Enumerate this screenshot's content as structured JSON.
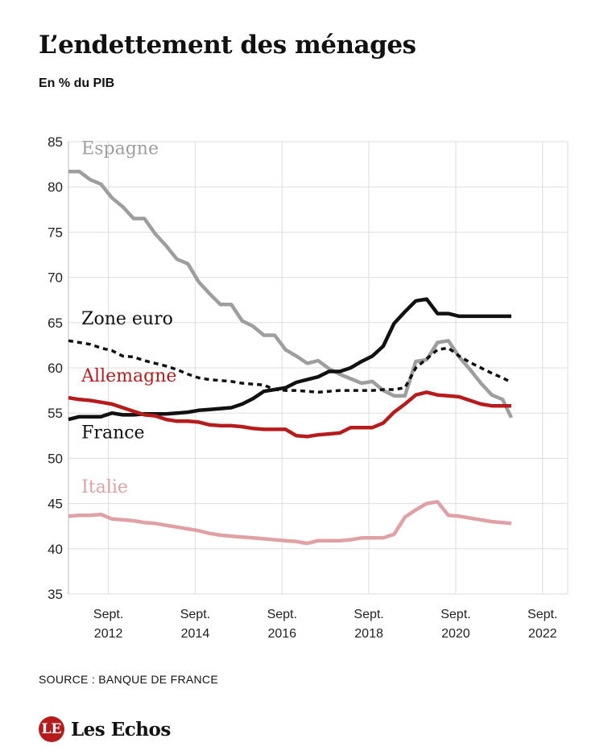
{
  "chart_data": {
    "type": "line",
    "title": "L’endettement des ménages",
    "subtitle": "En % du PIB",
    "source": "SOURCE : BANQUE DE FRANCE",
    "brand": "Les Echos",
    "ylim": [
      35,
      85
    ],
    "yticks": [
      35,
      40,
      45,
      50,
      55,
      60,
      65,
      70,
      75,
      80,
      85
    ],
    "xlim": [
      2011.75,
      2023.25
    ],
    "xticks": [
      {
        "x": 2012.67,
        "line1": "Sept.",
        "line2": "2012"
      },
      {
        "x": 2014.67,
        "line1": "Sept.",
        "line2": "2014"
      },
      {
        "x": 2016.67,
        "line1": "Sept.",
        "line2": "2016"
      },
      {
        "x": 2018.67,
        "line1": "Sept.",
        "line2": "2018"
      },
      {
        "x": 2020.67,
        "line1": "Sept.",
        "line2": "2020"
      },
      {
        "x": 2022.67,
        "line1": "Sept.",
        "line2": "2022"
      }
    ],
    "grid": true,
    "series": [
      {
        "name": "Espagne",
        "color": "#9e9e9e",
        "dash": "",
        "points": [
          [
            2011.75,
            81.7
          ],
          [
            2012.0,
            81.7
          ],
          [
            2012.25,
            80.8
          ],
          [
            2012.5,
            80.3
          ],
          [
            2012.75,
            78.8
          ],
          [
            2013.0,
            77.8
          ],
          [
            2013.25,
            76.5
          ],
          [
            2013.5,
            76.5
          ],
          [
            2013.75,
            74.8
          ],
          [
            2014.0,
            73.5
          ],
          [
            2014.25,
            72.0
          ],
          [
            2014.5,
            71.5
          ],
          [
            2014.75,
            69.5
          ],
          [
            2015.0,
            68.2
          ],
          [
            2015.25,
            67.0
          ],
          [
            2015.5,
            67.0
          ],
          [
            2015.75,
            65.2
          ],
          [
            2016.0,
            64.6
          ],
          [
            2016.25,
            63.6
          ],
          [
            2016.5,
            63.6
          ],
          [
            2016.75,
            62.0
          ],
          [
            2017.0,
            61.3
          ],
          [
            2017.25,
            60.5
          ],
          [
            2017.5,
            60.8
          ],
          [
            2017.75,
            59.9
          ],
          [
            2018.0,
            59.3
          ],
          [
            2018.25,
            58.8
          ],
          [
            2018.5,
            58.3
          ],
          [
            2018.75,
            58.5
          ],
          [
            2019.0,
            57.5
          ],
          [
            2019.25,
            56.9
          ],
          [
            2019.5,
            56.9
          ],
          [
            2019.75,
            60.7
          ],
          [
            2020.0,
            60.9
          ],
          [
            2020.25,
            62.8
          ],
          [
            2020.5,
            63.0
          ],
          [
            2020.75,
            61.2
          ],
          [
            2021.0,
            59.8
          ],
          [
            2021.25,
            58.3
          ],
          [
            2021.5,
            57.0
          ],
          [
            2021.75,
            56.5
          ],
          [
            2021.95,
            54.5
          ]
        ]
      },
      {
        "name": "Zone euro",
        "color": "#111111",
        "dash": "6 5",
        "points": [
          [
            2011.75,
            63.0
          ],
          [
            2012.0,
            62.8
          ],
          [
            2012.25,
            62.6
          ],
          [
            2012.5,
            62.2
          ],
          [
            2012.75,
            61.9
          ],
          [
            2013.0,
            61.3
          ],
          [
            2013.25,
            61.2
          ],
          [
            2013.5,
            60.8
          ],
          [
            2013.75,
            60.5
          ],
          [
            2014.0,
            60.2
          ],
          [
            2014.25,
            59.8
          ],
          [
            2014.5,
            59.3
          ],
          [
            2014.75,
            58.9
          ],
          [
            2015.0,
            58.7
          ],
          [
            2015.25,
            58.6
          ],
          [
            2015.5,
            58.5
          ],
          [
            2015.75,
            58.3
          ],
          [
            2016.0,
            58.2
          ],
          [
            2016.25,
            58.1
          ],
          [
            2016.5,
            57.6
          ],
          [
            2016.75,
            57.5
          ],
          [
            2017.0,
            57.5
          ],
          [
            2017.25,
            57.4
          ],
          [
            2017.5,
            57.3
          ],
          [
            2017.75,
            57.4
          ],
          [
            2018.0,
            57.5
          ],
          [
            2018.25,
            57.5
          ],
          [
            2018.5,
            57.5
          ],
          [
            2018.75,
            57.5
          ],
          [
            2019.0,
            57.6
          ],
          [
            2019.25,
            57.6
          ],
          [
            2019.5,
            57.8
          ],
          [
            2019.75,
            60.0
          ],
          [
            2020.0,
            61.0
          ],
          [
            2020.25,
            62.0
          ],
          [
            2020.5,
            62.2
          ],
          [
            2020.75,
            61.3
          ],
          [
            2021.0,
            60.6
          ],
          [
            2021.25,
            60.0
          ],
          [
            2021.5,
            59.4
          ],
          [
            2021.75,
            58.9
          ],
          [
            2021.95,
            58.4
          ]
        ]
      },
      {
        "name": "France",
        "color": "#111111",
        "dash": "",
        "points": [
          [
            2011.75,
            54.3
          ],
          [
            2012.0,
            54.6
          ],
          [
            2012.25,
            54.6
          ],
          [
            2012.5,
            54.6
          ],
          [
            2012.75,
            55.0
          ],
          [
            2013.0,
            54.8
          ],
          [
            2013.25,
            54.8
          ],
          [
            2013.5,
            54.9
          ],
          [
            2013.75,
            54.9
          ],
          [
            2014.0,
            54.9
          ],
          [
            2014.25,
            55.0
          ],
          [
            2014.5,
            55.1
          ],
          [
            2014.75,
            55.3
          ],
          [
            2015.0,
            55.4
          ],
          [
            2015.25,
            55.5
          ],
          [
            2015.5,
            55.6
          ],
          [
            2015.75,
            56.0
          ],
          [
            2016.0,
            56.6
          ],
          [
            2016.25,
            57.4
          ],
          [
            2016.5,
            57.6
          ],
          [
            2016.75,
            57.8
          ],
          [
            2017.0,
            58.4
          ],
          [
            2017.25,
            58.7
          ],
          [
            2017.5,
            59.0
          ],
          [
            2017.75,
            59.6
          ],
          [
            2018.0,
            59.6
          ],
          [
            2018.25,
            60.0
          ],
          [
            2018.5,
            60.7
          ],
          [
            2018.75,
            61.3
          ],
          [
            2019.0,
            62.4
          ],
          [
            2019.25,
            64.9
          ],
          [
            2019.5,
            66.2
          ],
          [
            2019.75,
            67.4
          ],
          [
            2020.0,
            67.6
          ],
          [
            2020.25,
            66.0
          ],
          [
            2020.5,
            66.0
          ],
          [
            2020.75,
            65.7
          ],
          [
            2021.0,
            65.7
          ],
          [
            2021.25,
            65.7
          ],
          [
            2021.5,
            65.7
          ],
          [
            2021.75,
            65.7
          ],
          [
            2021.95,
            65.7
          ]
        ]
      },
      {
        "name": "Allemagne",
        "color": "#b71c1c",
        "dash": "",
        "points": [
          [
            2011.75,
            56.7
          ],
          [
            2012.0,
            56.5
          ],
          [
            2012.25,
            56.4
          ],
          [
            2012.5,
            56.2
          ],
          [
            2012.75,
            56.0
          ],
          [
            2013.0,
            55.6
          ],
          [
            2013.25,
            55.2
          ],
          [
            2013.5,
            54.8
          ],
          [
            2013.75,
            54.7
          ],
          [
            2014.0,
            54.3
          ],
          [
            2014.25,
            54.1
          ],
          [
            2014.5,
            54.1
          ],
          [
            2014.75,
            54.0
          ],
          [
            2015.0,
            53.7
          ],
          [
            2015.25,
            53.6
          ],
          [
            2015.5,
            53.6
          ],
          [
            2015.75,
            53.5
          ],
          [
            2016.0,
            53.3
          ],
          [
            2016.25,
            53.2
          ],
          [
            2016.5,
            53.2
          ],
          [
            2016.75,
            53.2
          ],
          [
            2017.0,
            52.5
          ],
          [
            2017.25,
            52.4
          ],
          [
            2017.5,
            52.6
          ],
          [
            2017.75,
            52.7
          ],
          [
            2018.0,
            52.8
          ],
          [
            2018.25,
            53.4
          ],
          [
            2018.5,
            53.4
          ],
          [
            2018.75,
            53.4
          ],
          [
            2019.0,
            53.9
          ],
          [
            2019.25,
            55.1
          ],
          [
            2019.5,
            56.0
          ],
          [
            2019.75,
            57.0
          ],
          [
            2020.0,
            57.3
          ],
          [
            2020.25,
            57.0
          ],
          [
            2020.5,
            56.9
          ],
          [
            2020.75,
            56.8
          ],
          [
            2021.0,
            56.4
          ],
          [
            2021.25,
            56.0
          ],
          [
            2021.5,
            55.8
          ],
          [
            2021.75,
            55.8
          ],
          [
            2021.95,
            55.8
          ]
        ]
      },
      {
        "name": "Italie",
        "color": "#e0a0a4",
        "dash": "",
        "points": [
          [
            2011.75,
            43.6
          ],
          [
            2012.0,
            43.7
          ],
          [
            2012.25,
            43.7
          ],
          [
            2012.5,
            43.8
          ],
          [
            2012.75,
            43.3
          ],
          [
            2013.0,
            43.2
          ],
          [
            2013.25,
            43.1
          ],
          [
            2013.5,
            42.9
          ],
          [
            2013.75,
            42.8
          ],
          [
            2014.0,
            42.6
          ],
          [
            2014.25,
            42.4
          ],
          [
            2014.5,
            42.2
          ],
          [
            2014.75,
            42.0
          ],
          [
            2015.0,
            41.7
          ],
          [
            2015.25,
            41.5
          ],
          [
            2015.5,
            41.4
          ],
          [
            2015.75,
            41.3
          ],
          [
            2016.0,
            41.2
          ],
          [
            2016.25,
            41.1
          ],
          [
            2016.5,
            41.0
          ],
          [
            2016.75,
            40.9
          ],
          [
            2017.0,
            40.8
          ],
          [
            2017.25,
            40.6
          ],
          [
            2017.5,
            40.9
          ],
          [
            2017.75,
            40.9
          ],
          [
            2018.0,
            40.9
          ],
          [
            2018.25,
            41.0
          ],
          [
            2018.5,
            41.2
          ],
          [
            2018.75,
            41.2
          ],
          [
            2019.0,
            41.2
          ],
          [
            2019.25,
            41.6
          ],
          [
            2019.5,
            43.5
          ],
          [
            2019.75,
            44.3
          ],
          [
            2020.0,
            45.0
          ],
          [
            2020.25,
            45.2
          ],
          [
            2020.5,
            43.7
          ],
          [
            2020.75,
            43.6
          ],
          [
            2021.0,
            43.4
          ],
          [
            2021.25,
            43.2
          ],
          [
            2021.5,
            43.0
          ],
          [
            2021.75,
            42.9
          ],
          [
            2021.95,
            42.8
          ]
        ]
      }
    ],
    "labels": [
      {
        "text": "Espagne",
        "series": "Espagne",
        "x": 2012.05,
        "y": 83.6
      },
      {
        "text": "Zone euro",
        "series": "Zone euro",
        "x": 2012.05,
        "y": 64.8
      },
      {
        "text": "Allemagne",
        "series": "Allemagne",
        "x": 2012.05,
        "y": 58.5
      },
      {
        "text": "France",
        "series": "France",
        "x": 2012.05,
        "y": 52.2
      },
      {
        "text": "Italie",
        "series": "Italie",
        "x": 2012.05,
        "y": 46.2
      }
    ]
  }
}
